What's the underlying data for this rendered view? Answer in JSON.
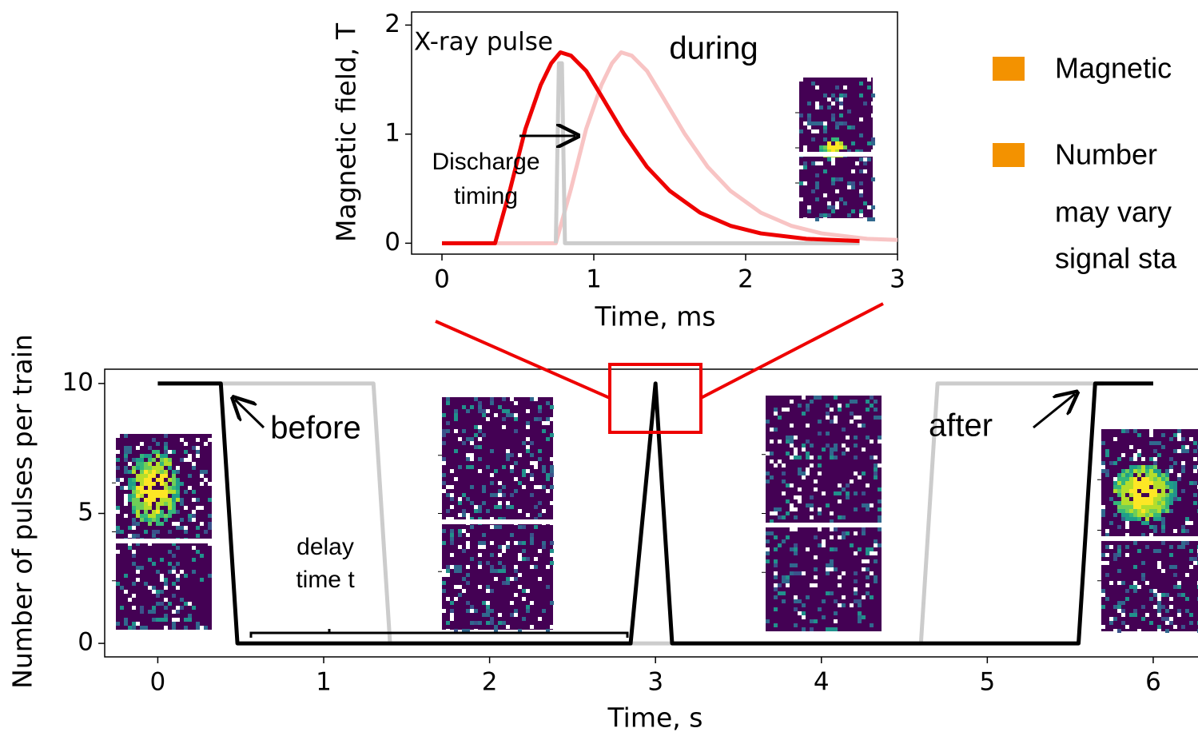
{
  "chart_data": [
    {
      "type": "line",
      "x_label": "Time, ms",
      "y_label": "Magnetic field, T",
      "xlim": [
        -0.2,
        3.0
      ],
      "ylim": [
        -0.1,
        2.12
      ],
      "xticks": [
        0,
        1,
        2,
        3
      ],
      "yticks": [
        0,
        1,
        2
      ],
      "annotations": {
        "during": "during",
        "discharge": [
          "Discharge",
          "timing"
        ]
      },
      "series": [
        {
          "color": "#f8c4c4",
          "x": [
            0,
            0.75,
            0.85,
            0.95,
            1.05,
            1.12,
            1.18,
            1.25,
            1.35,
            1.45,
            1.6,
            1.75,
            1.9,
            2.1,
            2.3,
            2.5,
            2.8,
            3.0
          ],
          "values": [
            0,
            0,
            0.5,
            1.05,
            1.45,
            1.65,
            1.75,
            1.72,
            1.58,
            1.35,
            1.0,
            0.7,
            0.48,
            0.28,
            0.16,
            0.09,
            0.04,
            0.03
          ]
        },
        {
          "name": "X-ray pulse",
          "color": "#cccccc",
          "x": [
            0.75,
            0.77,
            0.79,
            0.81,
            2.75
          ],
          "values": [
            0,
            1.65,
            1.65,
            0,
            0
          ]
        },
        {
          "color": "#ee0000",
          "x": [
            0,
            0.35,
            0.45,
            0.55,
            0.65,
            0.72,
            0.78,
            0.85,
            0.95,
            1.05,
            1.2,
            1.35,
            1.5,
            1.7,
            1.9,
            2.1,
            2.4,
            2.75
          ],
          "values": [
            0,
            0,
            0.5,
            1.05,
            1.45,
            1.65,
            1.75,
            1.72,
            1.58,
            1.35,
            1.0,
            0.7,
            0.48,
            0.28,
            0.16,
            0.09,
            0.04,
            0.02
          ]
        }
      ]
    },
    {
      "type": "line",
      "x_label": "Time, s",
      "y_label": "Number of pulses per train",
      "xlim": [
        -0.32,
        6.27
      ],
      "ylim": [
        -0.52,
        10.55
      ],
      "xticks": [
        0,
        1,
        2,
        3,
        4,
        5,
        6
      ],
      "yticks": [
        0,
        5,
        10
      ],
      "annotations": {
        "before": "before",
        "after": "after",
        "delay": [
          "delay",
          "time t"
        ]
      },
      "series": [
        {
          "color": "#cccccc",
          "x": [
            0,
            1.3,
            1.4,
            4.6,
            4.7,
            5.7
          ],
          "values": [
            10,
            10,
            0,
            0,
            10,
            10
          ]
        },
        {
          "color": "#000000",
          "x": [
            0,
            0.38,
            0.48,
            2.85,
            3.0,
            3.1,
            5.55,
            5.65,
            6.0
          ],
          "values": [
            10,
            10,
            0,
            0,
            10,
            0,
            0,
            10,
            10
          ]
        }
      ]
    }
  ],
  "bullets": [
    [
      "Magnetic"
    ],
    [
      "Number",
      "may vary",
      "signal sta"
    ]
  ]
}
